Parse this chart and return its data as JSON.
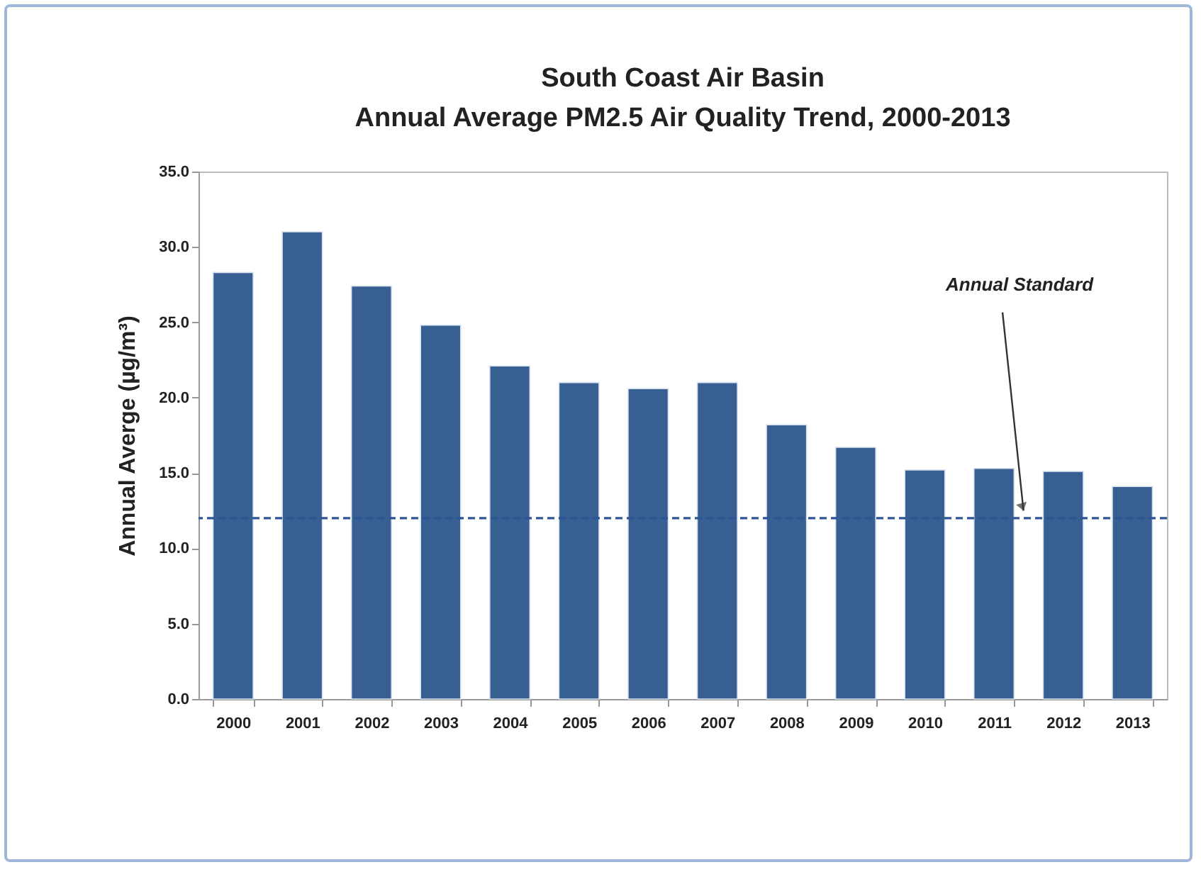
{
  "chart_data": {
    "type": "bar",
    "title": [
      "South Coast Air Basin",
      "Annual Average PM2.5 Air Quality Trend, 2000-2013"
    ],
    "ylabel": "Annual Averge (µg/m³)",
    "categories": [
      "2000",
      "2001",
      "2002",
      "2003",
      "2004",
      "2005",
      "2006",
      "2007",
      "2008",
      "2009",
      "2010",
      "2011",
      "2012",
      "2013"
    ],
    "values": [
      28.3,
      31.0,
      27.4,
      24.8,
      22.1,
      21.0,
      20.6,
      21.0,
      18.2,
      16.7,
      15.2,
      15.3,
      15.1,
      14.1
    ],
    "color": "#375f92",
    "ylim": [
      0,
      35
    ],
    "yticks": [
      {
        "value": 0,
        "label": "0.0"
      },
      {
        "value": 5,
        "label": "5.0"
      },
      {
        "value": 10,
        "label": "10.0"
      },
      {
        "value": 15,
        "label": "15.0"
      },
      {
        "value": 20,
        "label": "20.0"
      },
      {
        "value": 25,
        "label": "25.0"
      },
      {
        "value": 30,
        "label": "30.0"
      },
      {
        "value": 35,
        "label": "35.0"
      }
    ],
    "ref_lines": [
      {
        "axis": "y",
        "value": 12,
        "label": "Annual Standard",
        "color": "#2f5597",
        "line_style": "dashed"
      }
    ],
    "grid": false
  }
}
